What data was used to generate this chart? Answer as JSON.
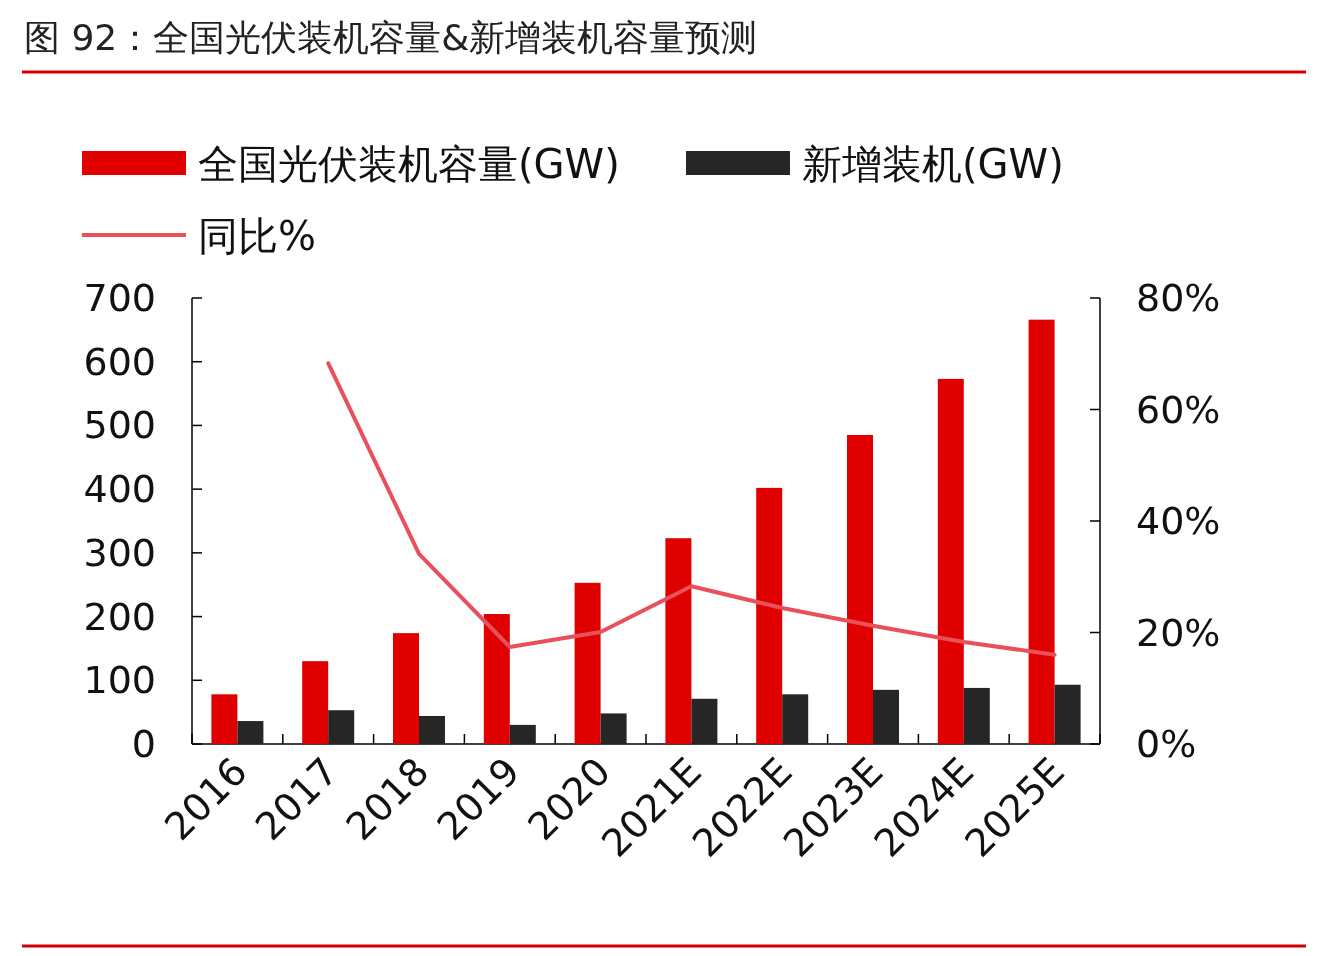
{
  "chart_data": {
    "type": "bar",
    "title": "图 92：全国光伏装机容量&新增装机容量预测",
    "categories": [
      "2016",
      "2017",
      "2018",
      "2019",
      "2020",
      "2021E",
      "2022E",
      "2023E",
      "2024E",
      "2025E"
    ],
    "series": [
      {
        "name": "全国光伏装机容量(GW)",
        "color": "#e00000",
        "values": [
          78,
          130,
          174,
          204,
          253,
          323,
          402,
          485,
          573,
          666
        ]
      },
      {
        "name": "新增装机(GW)",
        "color": "#262626",
        "values": [
          36,
          53,
          44,
          30,
          48,
          71,
          78,
          85,
          88,
          93
        ]
      },
      {
        "name": "同比%",
        "type": "line",
        "axis": "y2",
        "color": "#e8505b",
        "values": [
          null,
          68.3,
          34.1,
          17.4,
          20.1,
          28.3,
          24.4,
          21.2,
          18.3,
          16.0
        ]
      }
    ],
    "ylim": [
      0,
      700
    ],
    "yticks": [
      0,
      100,
      200,
      300,
      400,
      500,
      600,
      700
    ],
    "y2lim": [
      0,
      80
    ],
    "y2ticks": [
      {
        "value": 0,
        "label": "0%"
      },
      {
        "value": 20,
        "label": "20%"
      },
      {
        "value": 40,
        "label": "40%"
      },
      {
        "value": 60,
        "label": "60%"
      },
      {
        "value": 80,
        "label": "80%"
      }
    ],
    "legend": "top"
  }
}
